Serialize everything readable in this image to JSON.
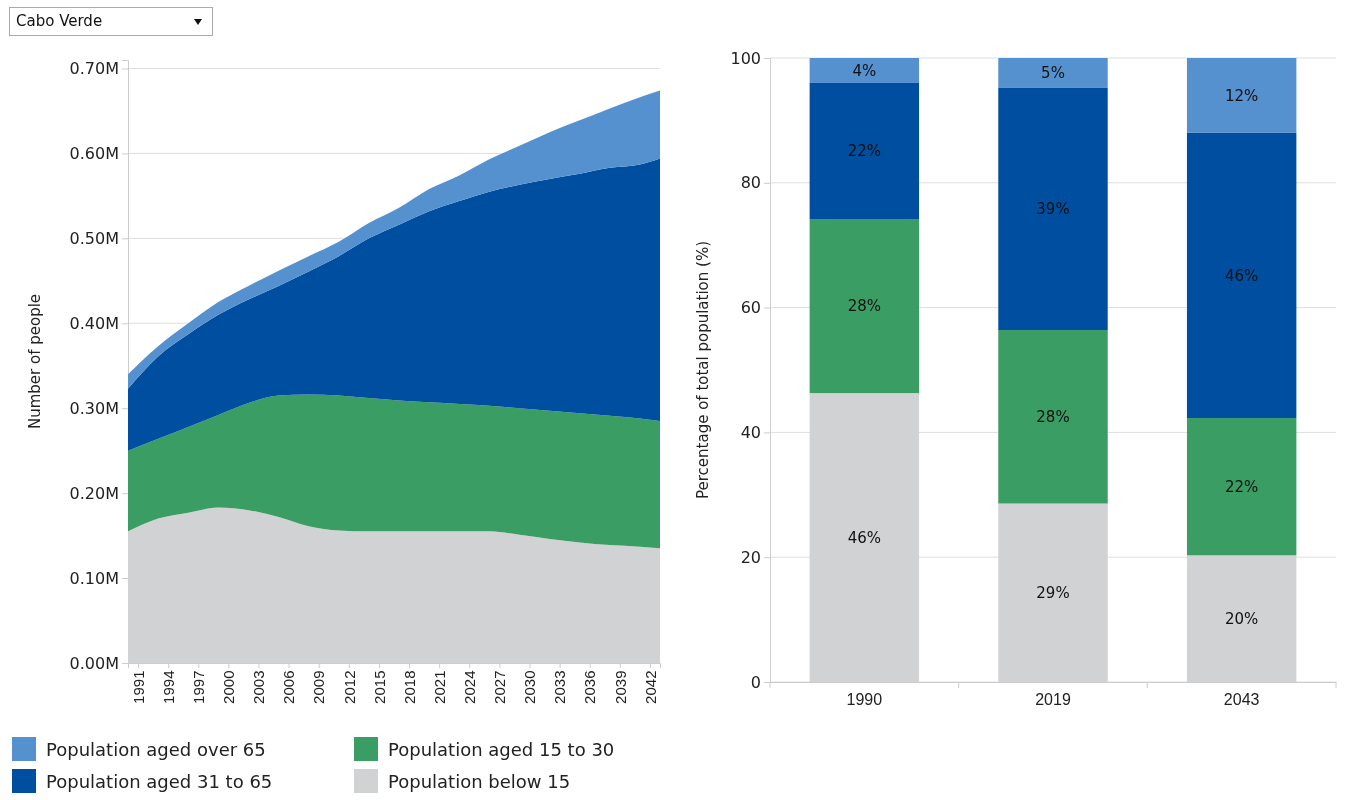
{
  "chart_data": [
    {
      "type": "area",
      "title": "Cabo Verde",
      "ylabel": "Number of people",
      "stacked": true,
      "legend": "bottom",
      "grid": "y",
      "x": [
        1990,
        1993,
        1996,
        1999,
        2002,
        2005,
        2008,
        2011,
        2014,
        2017,
        2020,
        2023,
        2026,
        2029,
        2032,
        2035,
        2038,
        2041,
        2043
      ],
      "xlim": [
        1990,
        2043
      ],
      "xticks": [
        1991,
        1994,
        1997,
        2000,
        2003,
        2006,
        2009,
        2012,
        2015,
        2018,
        2021,
        2024,
        2027,
        2030,
        2033,
        2036,
        2039,
        2042
      ],
      "ylim": [
        0,
        0.71
      ],
      "yticks": [
        {
          "value": 0,
          "label": "0.00M"
        },
        {
          "value": 0.1,
          "label": "0.10M"
        },
        {
          "value": 0.2,
          "label": "0.20M"
        },
        {
          "value": 0.3,
          "label": "0.30M"
        },
        {
          "value": 0.4,
          "label": "0.40M"
        },
        {
          "value": 0.5,
          "label": "0.50M"
        },
        {
          "value": 0.6,
          "label": "0.60M"
        },
        {
          "value": 0.7,
          "label": "0.70M"
        }
      ],
      "series": [
        {
          "name": "Population below 15",
          "color": "#d1d2d4",
          "values": [
            0.155,
            0.17,
            0.177,
            0.183,
            0.18,
            0.172,
            0.161,
            0.156,
            0.155,
            0.155,
            0.155,
            0.155,
            0.155,
            0.151,
            0.146,
            0.142,
            0.139,
            0.137,
            0.135
          ]
        },
        {
          "name": "Population aged 15 to 30",
          "color": "#3a9d63",
          "values": [
            0.095,
            0.094,
            0.101,
            0.109,
            0.126,
            0.143,
            0.155,
            0.159,
            0.157,
            0.154,
            0.152,
            0.15,
            0.148,
            0.149,
            0.151,
            0.152,
            0.152,
            0.151,
            0.15
          ]
        },
        {
          "name": "Population aged 31 to 65",
          "color": "#004ea0",
          "values": [
            0.073,
            0.097,
            0.109,
            0.118,
            0.122,
            0.129,
            0.145,
            0.164,
            0.188,
            0.207,
            0.225,
            0.239,
            0.252,
            0.263,
            0.273,
            0.282,
            0.292,
            0.299,
            0.309
          ]
        },
        {
          "name": "Population aged over 65",
          "color": "#5591cf",
          "values": [
            0.017,
            0.012,
            0.013,
            0.015,
            0.016,
            0.018,
            0.018,
            0.017,
            0.018,
            0.02,
            0.026,
            0.03,
            0.038,
            0.046,
            0.055,
            0.063,
            0.07,
            0.079,
            0.08
          ]
        }
      ]
    },
    {
      "type": "bar",
      "ylabel": "Percentage of total population (%)",
      "stacked": true,
      "grid": "y",
      "categories": [
        "1990",
        "2019",
        "2043"
      ],
      "ylim": [
        0,
        100
      ],
      "yticks": [
        0,
        20,
        40,
        60,
        80,
        100
      ],
      "series": [
        {
          "color": "#d1d2d4",
          "values": [
            46.3,
            28.6,
            20.3
          ],
          "value_labels": [
            "46%",
            "29%",
            "20%"
          ]
        },
        {
          "color": "#3a9d63",
          "values": [
            27.9,
            27.8,
            22.0
          ],
          "value_labels": [
            "28%",
            "28%",
            "22%"
          ]
        },
        {
          "color": "#004ea0",
          "values": [
            21.8,
            38.8,
            45.7
          ],
          "value_labels": [
            "22%",
            "39%",
            "46%"
          ]
        },
        {
          "color": "#5591cf",
          "values": [
            4.0,
            4.8,
            12.0
          ],
          "value_labels": [
            "4%",
            "5%",
            "12%"
          ]
        }
      ]
    }
  ]
}
